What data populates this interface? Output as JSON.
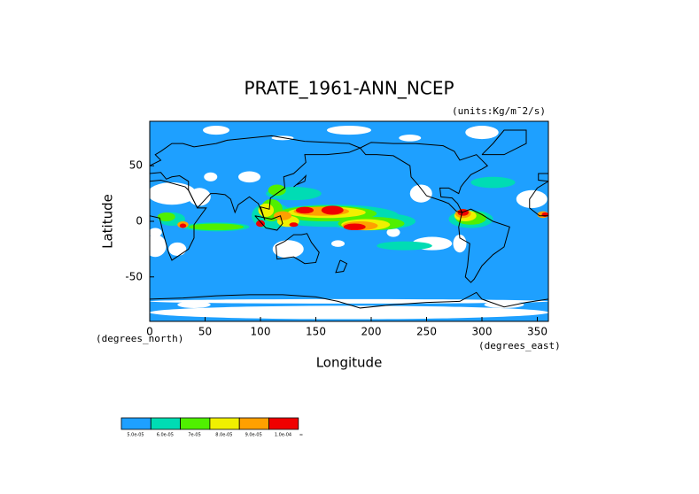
{
  "map": {
    "title": "PRATE_1961-ANN_NCEP",
    "units": "(units:Kg/m¯2/s)",
    "xlabel": "Longitude",
    "ylabel": "Latitude",
    "xunit": "(degrees_east)",
    "yunit": "(degrees_north)",
    "xlim": [
      0,
      360
    ],
    "ylim": [
      -90,
      90
    ],
    "xticks": [
      0,
      50,
      100,
      150,
      200,
      250,
      300,
      350
    ],
    "yticks": [
      -50,
      0,
      50
    ],
    "background_color": "#1ea0ff",
    "legend": {
      "colors": [
        "#1ea0ff",
        "#00dcb4",
        "#50f000",
        "#f0f000",
        "#ffa000",
        "#f00000"
      ],
      "labels": [
        "5.0e-05",
        "6.0e-05",
        "7e-05",
        "8.0e-05",
        "9.0e-05",
        "1.0e-04",
        "∞"
      ]
    }
  }
}
